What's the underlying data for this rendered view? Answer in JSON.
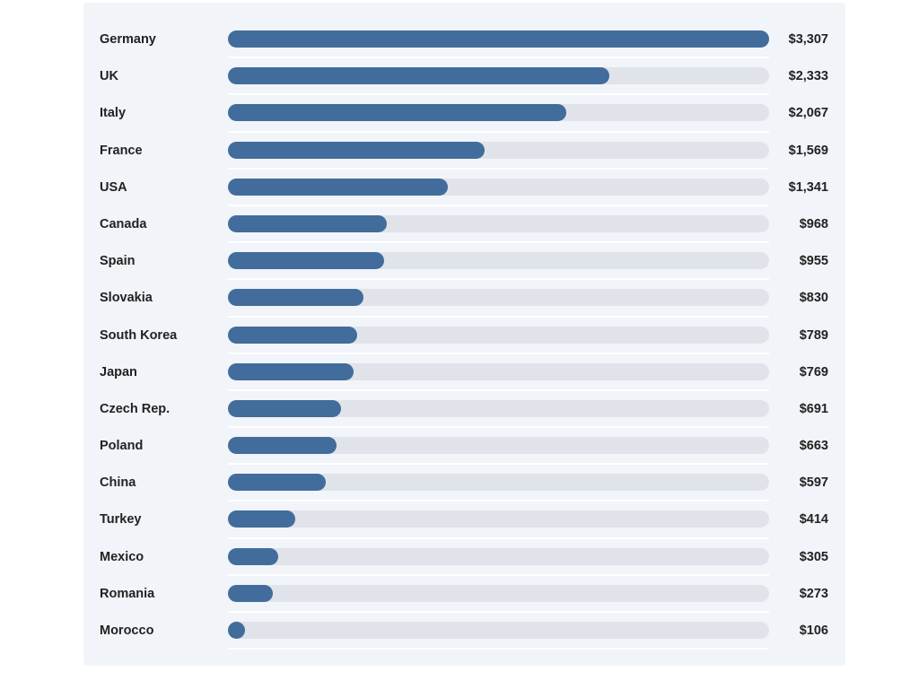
{
  "chart_data": {
    "type": "bar",
    "orientation": "horizontal",
    "categories": [
      "Germany",
      "UK",
      "Italy",
      "France",
      "USA",
      "Canada",
      "Spain",
      "Slovakia",
      "South Korea",
      "Japan",
      "Czech Rep.",
      "Poland",
      "China",
      "Turkey",
      "Mexico",
      "Romania",
      "Morocco"
    ],
    "values": [
      3307,
      2333,
      2067,
      1569,
      1341,
      968,
      955,
      830,
      789,
      769,
      691,
      663,
      597,
      414,
      305,
      273,
      106
    ],
    "value_labels": [
      "$3,307",
      "$2,333",
      "$2,067",
      "$1,569",
      "$1,341",
      "$968",
      "$955",
      "$830",
      "$789",
      "$769",
      "$691",
      "$663",
      "$597",
      "$414",
      "$305",
      "$273",
      "$106"
    ],
    "xlim": [
      0,
      3307
    ],
    "title": "",
    "xlabel": "",
    "ylabel": "",
    "grid": false,
    "legend": "none",
    "colors": {
      "bar": "#426c9b",
      "track": "#e0e4ea",
      "background": "#f1f4f8"
    }
  }
}
